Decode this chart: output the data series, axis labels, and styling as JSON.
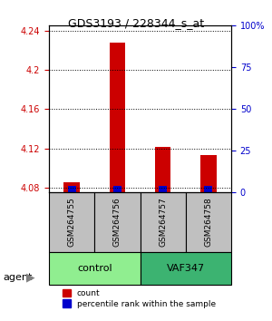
{
  "title": "GDS3193 / 228344_s_at",
  "samples": [
    "GSM264755",
    "GSM264756",
    "GSM264757",
    "GSM264758"
  ],
  "groups": [
    "control",
    "control",
    "VAF347",
    "VAF347"
  ],
  "group_labels": [
    "control",
    "VAF347"
  ],
  "group_colors": [
    "#90EE90",
    "#3CB371"
  ],
  "red_values": [
    4.085,
    4.228,
    4.121,
    4.113
  ],
  "blue_values": [
    4.082,
    4.082,
    4.082,
    4.082
  ],
  "ylim_left": [
    4.075,
    4.245
  ],
  "yticks_left": [
    4.08,
    4.12,
    4.16,
    4.2,
    4.24
  ],
  "ytick_labels_left": [
    "4.08",
    "4.12",
    "4.16",
    "4.2",
    "4.24"
  ],
  "yticks_right": [
    0,
    25,
    50,
    75,
    100
  ],
  "ytick_labels_right": [
    "0",
    "25",
    "50",
    "75",
    "100%"
  ],
  "left_tick_color": "#cc0000",
  "right_tick_color": "#0000cc",
  "bar_width": 0.35,
  "red_bar_color": "#cc0000",
  "blue_bar_color": "#0000cc",
  "grid_color": "#000000",
  "legend_count_label": "count",
  "legend_pct_label": "percentile rank within the sample",
  "agent_label": "agent",
  "sample_box_color": "#c0c0c0",
  "group_box_light": "#90EE90",
  "group_box_dark": "#3CB371"
}
